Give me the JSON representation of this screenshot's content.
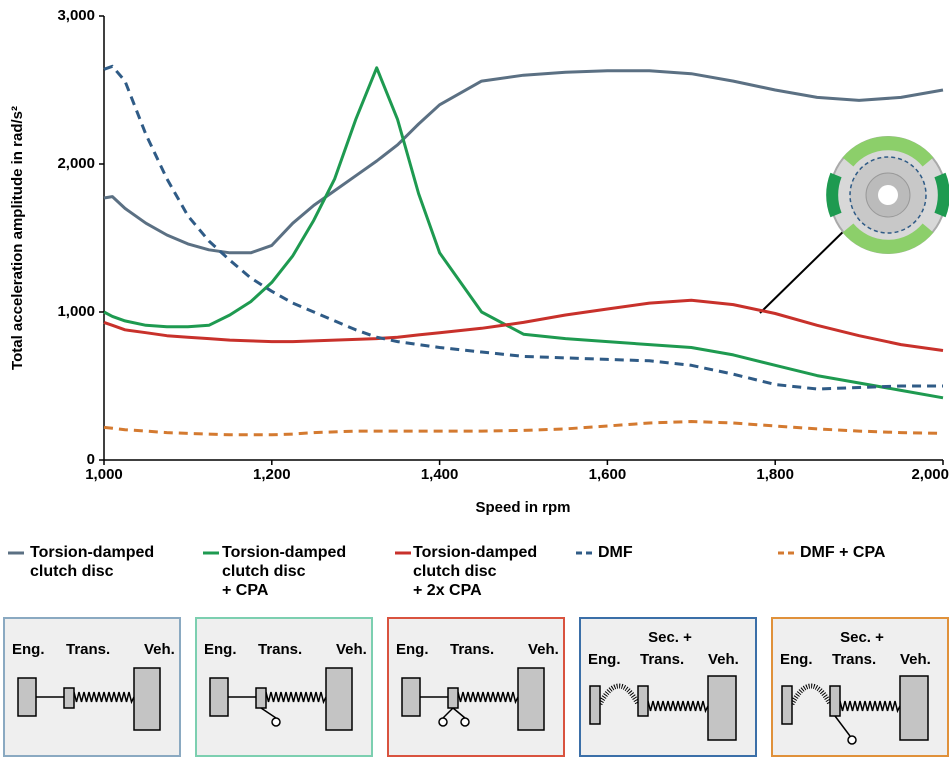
{
  "chart_data": {
    "type": "line",
    "x_label": "Speed in rpm",
    "y_label": "Total acceleration amplitude in rad/s²",
    "x": [
      1000,
      1010,
      1025,
      1050,
      1075,
      1100,
      1125,
      1150,
      1175,
      1200,
      1225,
      1250,
      1275,
      1300,
      1325,
      1350,
      1375,
      1400,
      1450,
      1500,
      1550,
      1600,
      1650,
      1700,
      1750,
      1800,
      1850,
      1900,
      1950,
      2000
    ],
    "series": [
      {
        "name": "Torsion-damped\nclutch disc",
        "color": "#5b7083",
        "line_style": "solid",
        "values": [
          1770,
          1780,
          1700,
          1600,
          1520,
          1460,
          1420,
          1400,
          1400,
          1450,
          1600,
          1720,
          1820,
          1920,
          2020,
          2130,
          2270,
          2400,
          2560,
          2600,
          2620,
          2630,
          2630,
          2610,
          2560,
          2500,
          2450,
          2430,
          2450,
          2500
        ]
      },
      {
        "name": "Torsion-damped\nclutch disc\n+ CPA",
        "color": "#1e9a50",
        "line_style": "solid",
        "values": [
          1000,
          970,
          940,
          910,
          900,
          900,
          910,
          980,
          1070,
          1200,
          1380,
          1620,
          1900,
          2300,
          2650,
          2300,
          1800,
          1400,
          1000,
          850,
          820,
          800,
          780,
          760,
          710,
          640,
          570,
          520,
          470,
          420
        ]
      },
      {
        "name": "Torsion-damped\nclutch disc\n+ 2x CPA",
        "color": "#c8312b",
        "line_style": "solid",
        "values": [
          930,
          910,
          880,
          860,
          840,
          830,
          820,
          810,
          805,
          800,
          800,
          805,
          810,
          815,
          820,
          830,
          845,
          860,
          890,
          930,
          980,
          1020,
          1060,
          1080,
          1050,
          990,
          910,
          840,
          780,
          740
        ]
      },
      {
        "name": "DMF",
        "color": "#2f5b86",
        "line_style": "dashed",
        "values": [
          2640,
          2660,
          2560,
          2200,
          1900,
          1650,
          1480,
          1350,
          1230,
          1140,
          1060,
          1000,
          940,
          880,
          830,
          800,
          780,
          760,
          730,
          700,
          690,
          680,
          670,
          640,
          580,
          510,
          480,
          490,
          500,
          500
        ]
      },
      {
        "name": "DMF + CPA",
        "color": "#d47a30",
        "line_style": "dashed",
        "values": [
          220,
          215,
          205,
          195,
          185,
          180,
          175,
          170,
          170,
          170,
          175,
          185,
          190,
          195,
          195,
          195,
          195,
          195,
          195,
          200,
          210,
          230,
          250,
          260,
          250,
          230,
          210,
          195,
          185,
          180
        ]
      }
    ],
    "xlim": [
      1000,
      2000
    ],
    "xticks": [
      {
        "value": 1000,
        "label": "1,000"
      },
      {
        "value": 1200,
        "label": "1,200"
      },
      {
        "value": 1400,
        "label": "1,400"
      },
      {
        "value": 1600,
        "label": "1,600"
      },
      {
        "value": 1800,
        "label": "1,800"
      },
      {
        "value": 2000,
        "label": "2,000"
      }
    ],
    "ylim": [
      0,
      3000
    ],
    "yticks": [
      0,
      {
        "value": 1000,
        "label": "1,000"
      },
      {
        "value": 2000,
        "label": "2,000"
      },
      {
        "value": 3000,
        "label": "3,000"
      }
    ],
    "grid": false
  },
  "schematics": [
    {
      "labels": [
        "Eng.",
        "Trans.",
        "Veh."
      ]
    },
    {
      "labels": [
        "Eng.",
        "Trans.",
        "Veh."
      ]
    },
    {
      "labels": [
        "Eng.",
        "Trans.",
        "Veh."
      ]
    },
    {
      "labels": [
        "Sec. +",
        "Eng.",
        "Trans.",
        "Veh."
      ]
    },
    {
      "labels": [
        "Sec. +",
        "Eng.",
        "Trans.",
        "Veh."
      ]
    }
  ]
}
